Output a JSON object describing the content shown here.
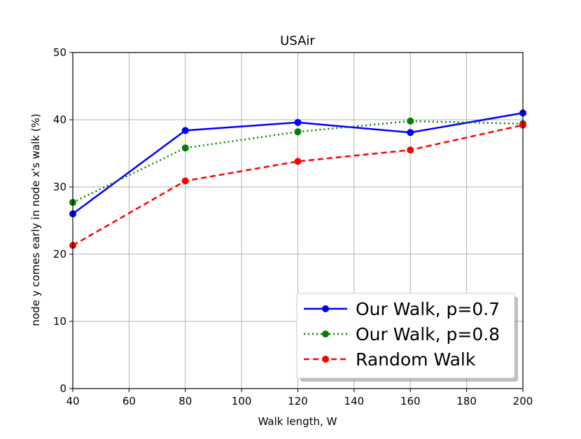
{
  "chart_data": {
    "type": "line",
    "title": "USAir",
    "xlabel": "Walk length, W",
    "ylabel": "node y comes early in node x's walk (%)",
    "xlim": [
      40,
      200
    ],
    "ylim": [
      0,
      50
    ],
    "xticks": [
      40,
      60,
      80,
      100,
      120,
      140,
      160,
      180,
      200
    ],
    "yticks": [
      0,
      10,
      20,
      30,
      40,
      50
    ],
    "x": [
      40,
      80,
      120,
      160,
      200
    ],
    "grid": true,
    "legend_position": "lower-right",
    "series": [
      {
        "name": "Our Walk, p=0.7",
        "color": "#0000ff",
        "line_style": "solid",
        "marker": "circle",
        "values": [
          26.0,
          38.4,
          39.6,
          38.1,
          41.0
        ]
      },
      {
        "name": "Our Walk, p=0.8",
        "color": "#008000",
        "line_style": "dotted",
        "marker": "circle",
        "values": [
          27.7,
          35.8,
          38.2,
          39.8,
          39.4
        ]
      },
      {
        "name": "Random Walk",
        "color": "#ff0000",
        "line_style": "dashed",
        "marker": "circle",
        "values": [
          21.3,
          30.9,
          33.8,
          35.5,
          39.2
        ]
      }
    ]
  }
}
